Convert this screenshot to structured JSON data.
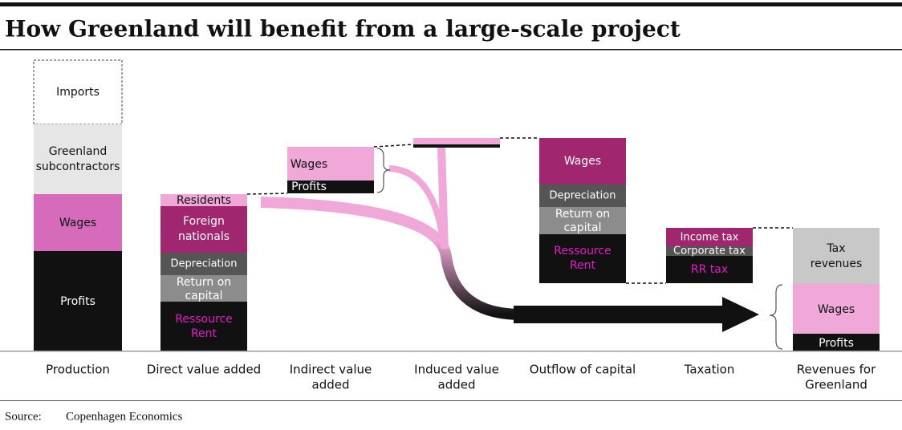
{
  "title": "How Greenland will benefit from a large-scale project",
  "columns": [
    {
      "label": [
        "Production"
      ],
      "segments": [
        [
          "Imports"
        ],
        [
          "Greenland",
          "subcontractors"
        ],
        [
          "Wages"
        ],
        [
          "Profits"
        ]
      ]
    },
    {
      "label": [
        "Direct value added"
      ],
      "segments": [
        [
          "Residents"
        ],
        [
          "Foreign",
          "nationals"
        ],
        [
          "Depreciation"
        ],
        [
          "Return on",
          "capital"
        ],
        [
          "Ressource",
          "Rent"
        ]
      ]
    },
    {
      "label": [
        "Indirect value",
        "added"
      ],
      "segments": [
        [
          "Wages"
        ],
        [
          "Profits"
        ]
      ]
    },
    {
      "label": [
        "Induced value",
        "added"
      ],
      "segments": []
    },
    {
      "label": [
        "Outflow of capital"
      ],
      "segments": [
        [
          "Wages"
        ],
        [
          "Depreciation"
        ],
        [
          "Return on",
          "capital"
        ],
        [
          "Ressource",
          "Rent"
        ]
      ]
    },
    {
      "label": [
        "Taxation"
      ],
      "segments": [
        [
          "Income tax"
        ],
        [
          "Corporate tax"
        ],
        [
          "RR tax"
        ]
      ]
    },
    {
      "label": [
        "Revenues for",
        "Greenland"
      ],
      "segments": [
        [
          "Tax",
          "revenues"
        ],
        [
          "Wages"
        ],
        [
          "Profits"
        ]
      ]
    }
  ],
  "source": {
    "label": "Source:",
    "text": "Copenhagen Economics"
  }
}
